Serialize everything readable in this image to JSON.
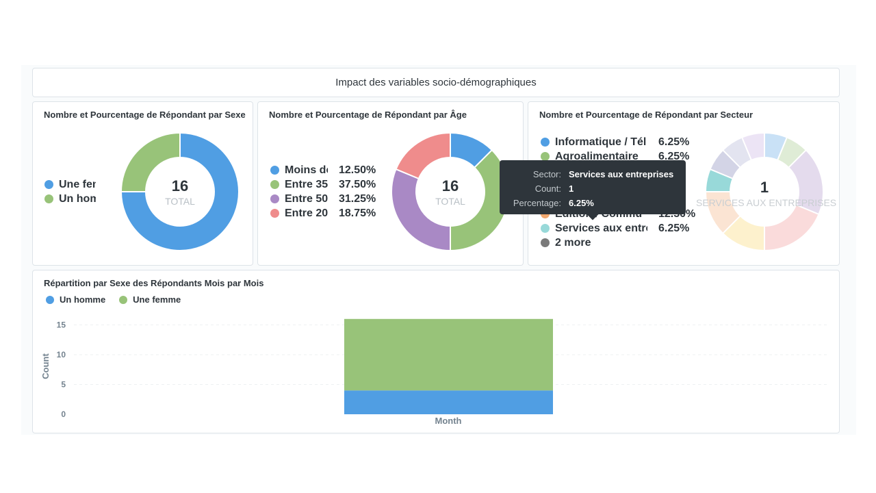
{
  "dashboard": {
    "title": "Impact des variables socio-démographiques"
  },
  "sexe": {
    "title": "Nombre et Pourcentage de Répondant par Sexe",
    "total": "16",
    "total_label": "TOTAL",
    "legend": [
      {
        "label": "Une femme",
        "color": "#509ee3"
      },
      {
        "label": "Un homme",
        "color": "#98c379"
      }
    ]
  },
  "age": {
    "title": "Nombre et Pourcentage de Répondant par Âge",
    "total": "16",
    "total_label": "TOTAL",
    "legend": [
      {
        "label": "Moins de",
        "pct": "12.50%",
        "color": "#509ee3"
      },
      {
        "label": "Entre 35",
        "pct": "37.50%",
        "color": "#98c379"
      },
      {
        "label": "Entre 50",
        "pct": "31.25%",
        "color": "#a989c5"
      },
      {
        "label": "Entre 20",
        "pct": "18.75%",
        "color": "#ef8c8c"
      }
    ]
  },
  "secteur": {
    "title": "Nombre et Pourcentage de Répondant par Secteur",
    "center_value": "1",
    "center_label": "SERVICES AUX ENTREPRISES",
    "legend": [
      {
        "label": "Informatique / Tél",
        "pct": "6.25%",
        "color": "#509ee3"
      },
      {
        "label": "Agroalimentaire",
        "pct": "6.25%",
        "color": "#98c379"
      },
      {
        "label": "",
        "pct": "",
        "color": "#a989c5"
      },
      {
        "label": "",
        "pct": "",
        "color": "#ef8c8c"
      },
      {
        "label": "",
        "pct": "",
        "color": "#f9d45c"
      },
      {
        "label": "Edition / Commu",
        "pct": "12.50%",
        "color": "#f2a86f"
      },
      {
        "label": "Services aux entre",
        "pct": "6.25%",
        "color": "#98d9d9"
      },
      {
        "label": "2 more",
        "pct": "",
        "color": "#7a7a7a"
      }
    ]
  },
  "tooltip": {
    "rows": [
      {
        "key": "Sector:",
        "value": "Services aux entreprises"
      },
      {
        "key": "Count:",
        "value": "1"
      },
      {
        "key": "Percentage:",
        "value": "6.25%"
      }
    ]
  },
  "monthly": {
    "title": "Répartition par Sexe des Répondants Mois par Mois",
    "legend": [
      {
        "label": "Un homme",
        "color": "#509ee3"
      },
      {
        "label": "Une femme",
        "color": "#98c379"
      }
    ]
  },
  "chart_data": [
    {
      "type": "pie",
      "title": "Nombre et Pourcentage de Répondant par Sexe",
      "categories": [
        "Une femme",
        "Un homme"
      ],
      "values": [
        12,
        4
      ],
      "colors": [
        "#509ee3",
        "#98c379"
      ],
      "donut": true
    },
    {
      "type": "pie",
      "title": "Nombre et Pourcentage de Répondant par Âge",
      "categories": [
        "Moins de",
        "Entre 35",
        "Entre 50",
        "Entre 20"
      ],
      "values": [
        2,
        6,
        5,
        3
      ],
      "colors": [
        "#509ee3",
        "#98c379",
        "#a989c5",
        "#ef8c8c"
      ],
      "donut": true
    },
    {
      "type": "pie",
      "title": "Nombre et Pourcentage de Répondant par Secteur",
      "values": [
        1,
        1,
        3,
        3,
        2,
        2,
        1,
        1,
        1,
        1
      ],
      "colors": [
        "#509ee3",
        "#98c379",
        "#a989c5",
        "#ef8c8c",
        "#f9d45c",
        "#f2a86f",
        "#98d9d9",
        "#7172ad",
        "#a6a7d0",
        "#c2a7e0"
      ],
      "highlighted": 6,
      "donut": true
    },
    {
      "type": "bar",
      "title": "Répartition par Sexe des Répondants Mois par Mois",
      "xlabel": "Month",
      "ylabel": "Count",
      "categories": [
        ""
      ],
      "series": [
        {
          "name": "Un homme",
          "values": [
            4
          ],
          "color": "#509ee3"
        },
        {
          "name": "Une femme",
          "values": [
            12
          ],
          "color": "#98c379"
        }
      ],
      "stacked": true,
      "yticks": [
        0,
        5,
        10,
        15
      ],
      "ylim": [
        0,
        16
      ],
      "grid": true
    }
  ]
}
